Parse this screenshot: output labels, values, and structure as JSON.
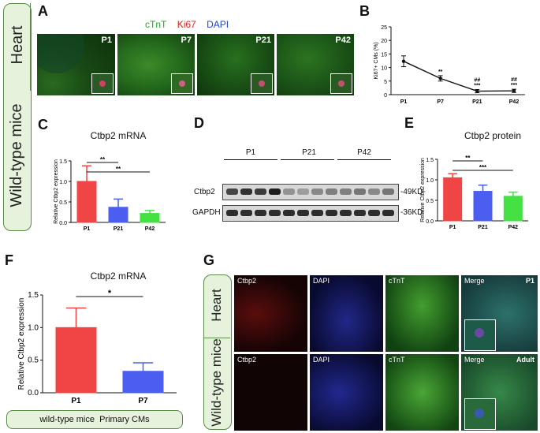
{
  "panels": {
    "A": "A",
    "B": "B",
    "C": "C",
    "D": "D",
    "E": "E",
    "F": "F",
    "G": "G"
  },
  "side_label": {
    "top": "Heart",
    "bottom": "Wild-type mice"
  },
  "panel_a": {
    "legend": [
      {
        "text": "cTnT",
        "color": "#22aa22"
      },
      {
        "text": "Ki67",
        "color": "#e02020"
      },
      {
        "text": "DAPI",
        "color": "#2040e0"
      }
    ],
    "images": [
      "P1",
      "P7",
      "P21",
      "P42"
    ]
  },
  "panel_g": {
    "side_label": {
      "top": "Heart",
      "bottom": "Wild-type mice"
    },
    "rows": [
      {
        "channels": [
          "Ctbp2",
          "DAPI",
          "cTnT",
          "Merge"
        ],
        "stage": "P1"
      },
      {
        "channels": [
          "Ctbp2",
          "DAPI",
          "cTnT",
          "Merge"
        ],
        "stage": "Adult"
      }
    ]
  },
  "panel_d": {
    "groups": [
      "P1",
      "P21",
      "P42"
    ],
    "rows": [
      {
        "label": "Ctbp2",
        "size": "-49KD"
      },
      {
        "label": "GAPDH",
        "size": "-36KD"
      }
    ]
  },
  "panel_f_footer": "wild-type mice  Primary CMs",
  "chart_data": [
    {
      "id": "B",
      "type": "line",
      "title": "",
      "ylabel": "Ki67+ CMs (%)",
      "categories": [
        "P1",
        "P7",
        "P21",
        "P42"
      ],
      "values": [
        12.3,
        6.0,
        1.3,
        1.4
      ],
      "errors": [
        2.0,
        1.0,
        0.6,
        0.6
      ],
      "ylim": [
        0,
        25
      ],
      "yticks": [
        0,
        5,
        10,
        15,
        20,
        25
      ],
      "annotations": [
        {
          "category": "P7",
          "lines": [
            "**"
          ]
        },
        {
          "category": "P21",
          "lines": [
            "##",
            "***"
          ]
        },
        {
          "category": "P42",
          "lines": [
            "##",
            "***"
          ]
        }
      ],
      "color": "#111111"
    },
    {
      "id": "C",
      "type": "bar",
      "title": "Ctbp2 mRNA",
      "ylabel": "Relative Ctbp2 expression",
      "categories": [
        "P1",
        "P21",
        "P42"
      ],
      "values": [
        1.0,
        0.37,
        0.22
      ],
      "errors": [
        0.38,
        0.2,
        0.07
      ],
      "colors": [
        "#f04545",
        "#4b5ef0",
        "#44e044"
      ],
      "ylim": [
        0,
        1.5
      ],
      "yticks": [
        0.0,
        0.5,
        1.0,
        1.5
      ],
      "significance": [
        {
          "from": 0,
          "to": 1,
          "label": "**"
        },
        {
          "from": 0,
          "to": 2,
          "label": "**"
        }
      ]
    },
    {
      "id": "E",
      "type": "bar",
      "title": "Ctbp2 protein",
      "ylabel": "Relative Ctbp2 expression",
      "categories": [
        "P1",
        "P21",
        "P42"
      ],
      "values": [
        1.05,
        0.72,
        0.6
      ],
      "errors": [
        0.1,
        0.15,
        0.1
      ],
      "colors": [
        "#f04545",
        "#4b5ef0",
        "#44e044"
      ],
      "ylim": [
        0,
        1.5
      ],
      "yticks": [
        0.0,
        0.5,
        1.0,
        1.5
      ],
      "significance": [
        {
          "from": 0,
          "to": 1,
          "label": "**"
        },
        {
          "from": 0,
          "to": 2,
          "label": "***"
        }
      ]
    },
    {
      "id": "F",
      "type": "bar",
      "title": "Ctbp2 mRNA",
      "ylabel": "Relative Ctbp2 expression",
      "categories": [
        "P1",
        "P7"
      ],
      "values": [
        1.0,
        0.33
      ],
      "errors": [
        0.3,
        0.13
      ],
      "colors": [
        "#f04545",
        "#4b5ef0"
      ],
      "ylim": [
        0,
        1.5
      ],
      "yticks": [
        0.0,
        0.5,
        1.0,
        1.5
      ],
      "significance": [
        {
          "from": 0,
          "to": 1,
          "label": "*"
        }
      ]
    }
  ]
}
